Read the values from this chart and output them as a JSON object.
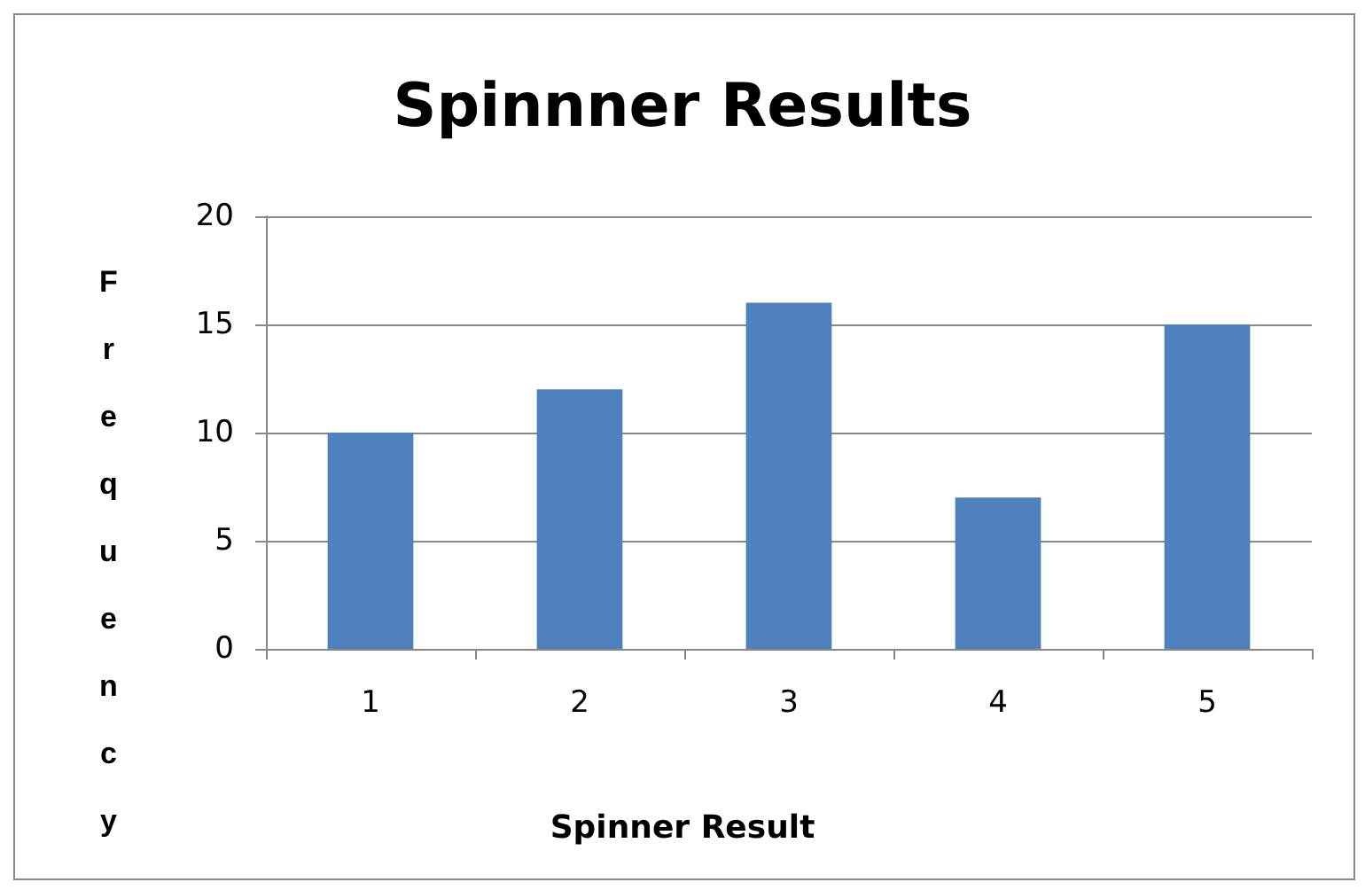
{
  "chart_data": {
    "type": "bar",
    "title": "Spinnner Results",
    "xlabel": "Spinner Result",
    "ylabel": "Frequency",
    "categories": [
      "1",
      "2",
      "3",
      "4",
      "5"
    ],
    "values": [
      10,
      12,
      16,
      7,
      15
    ],
    "color": "#4f81bd",
    "ylim": [
      0,
      20
    ],
    "yticks": [
      0,
      5,
      10,
      15,
      20
    ],
    "grid": "y"
  }
}
